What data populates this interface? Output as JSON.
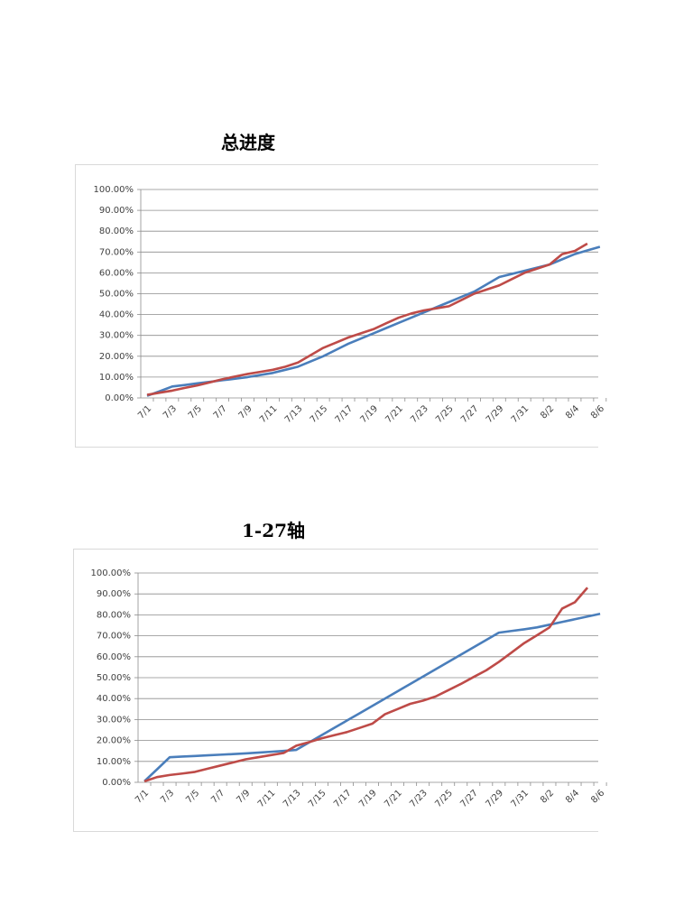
{
  "chart_data": [
    {
      "type": "line",
      "title": "总进度",
      "categories": [
        "7/1",
        null,
        "7/3",
        null,
        "7/5",
        null,
        "7/7",
        null,
        "7/9",
        null,
        "7/11",
        null,
        "7/13",
        null,
        "7/15",
        null,
        "7/17",
        null,
        "7/19",
        null,
        "7/21",
        null,
        "7/23",
        null,
        "7/25",
        null,
        "7/27",
        null,
        "7/29",
        null,
        "7/31",
        null,
        "8/2",
        null,
        "8/4",
        null,
        "8/6"
      ],
      "series": [
        {
          "color": "#4a7ebb",
          "values": [
            1,
            3.2,
            5.5,
            6.2,
            7,
            7.7,
            8.5,
            9.2,
            10,
            11,
            12,
            13.5,
            15,
            17.5,
            20,
            23,
            26,
            28.5,
            31,
            33.5,
            36,
            38.5,
            41,
            43.5,
            46,
            48.5,
            51,
            54.5,
            58,
            59.5,
            61,
            62.5,
            64,
            66.5,
            69,
            70.8,
            72.5
          ]
        },
        {
          "color": "#be4b48",
          "values": [
            1.5,
            2.5,
            3.5,
            4.8,
            6,
            7.5,
            9,
            10.3,
            11.5,
            12.5,
            13.5,
            15,
            17,
            20.5,
            24,
            26.5,
            29,
            31,
            33,
            35.8,
            38.5,
            40.5,
            42,
            43,
            44,
            47,
            50,
            52,
            54,
            57,
            60,
            62,
            64,
            69,
            70.5,
            74,
            null
          ]
        }
      ],
      "ylim": [
        0,
        100
      ],
      "yticks": [
        {
          "value": 0,
          "label": "0.00%"
        },
        {
          "value": 10,
          "label": "10.00%"
        },
        {
          "value": 20,
          "label": "20.00%"
        },
        {
          "value": 30,
          "label": "30.00%"
        },
        {
          "value": 40,
          "label": "40.00%"
        },
        {
          "value": 50,
          "label": "50.00%"
        },
        {
          "value": 60,
          "label": "60.00%"
        },
        {
          "value": 70,
          "label": "70.00%"
        },
        {
          "value": 80,
          "label": "80.00%"
        },
        {
          "value": 90,
          "label": "90.00%"
        },
        {
          "value": 100,
          "label": "100.00%"
        }
      ],
      "grid": true
    },
    {
      "type": "line",
      "title": "1-27轴",
      "categories": [
        "7/1",
        null,
        "7/3",
        null,
        "7/5",
        null,
        "7/7",
        null,
        "7/9",
        null,
        "7/11",
        null,
        "7/13",
        null,
        "7/15",
        null,
        "7/17",
        null,
        "7/19",
        null,
        "7/21",
        null,
        "7/23",
        null,
        "7/25",
        null,
        "7/27",
        null,
        "7/29",
        null,
        "7/31",
        null,
        "8/2",
        null,
        "8/4",
        null,
        "8/6"
      ],
      "series": [
        {
          "color": "#4a7ebb",
          "values": [
            0.5,
            6.2,
            12,
            12.3,
            12.6,
            12.9,
            13.2,
            13.5,
            13.8,
            14.2,
            14.6,
            15,
            15.5,
            19,
            22.5,
            26,
            29.5,
            33,
            36.5,
            40,
            43.5,
            47,
            50.5,
            54,
            57.5,
            61,
            64.5,
            68,
            71.5,
            72.3,
            73.1,
            74,
            75.3,
            76.6,
            77.9,
            79.2,
            80.5
          ]
        },
        {
          "color": "#be4b48",
          "values": [
            0.5,
            2.5,
            3.5,
            4.2,
            5,
            6.5,
            8,
            9.5,
            11,
            12,
            13,
            14,
            17.5,
            19.2,
            21,
            22.5,
            24,
            26,
            28,
            32.5,
            35,
            37.5,
            39,
            41,
            44,
            47,
            50.3,
            53.5,
            57.5,
            62,
            66.5,
            70.2,
            74,
            83,
            86,
            93,
            null
          ]
        }
      ],
      "ylim": [
        0,
        100
      ],
      "yticks": [
        {
          "value": 0,
          "label": "0.00%"
        },
        {
          "value": 10,
          "label": "10.00%"
        },
        {
          "value": 20,
          "label": "20.00%"
        },
        {
          "value": 30,
          "label": "30.00%"
        },
        {
          "value": 40,
          "label": "40.00%"
        },
        {
          "value": 50,
          "label": "50.00%"
        },
        {
          "value": 60,
          "label": "60.00%"
        },
        {
          "value": 70,
          "label": "70.00%"
        },
        {
          "value": 80,
          "label": "80.00%"
        },
        {
          "value": 90,
          "label": "90.00%"
        },
        {
          "value": 100,
          "label": "100.00%"
        }
      ],
      "grid": true
    }
  ]
}
